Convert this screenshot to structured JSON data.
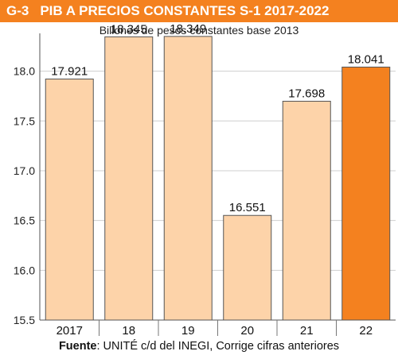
{
  "header": {
    "figure_number": "G-3",
    "title": "PIB A PRECIOS CONSTANTES S-1 2017-2022"
  },
  "colors": {
    "accent": "#f4811f",
    "bar_light": "#fdd3a9",
    "bar_highlight": "#f4811f",
    "gridline": "#cfcfcf"
  },
  "chart_data": {
    "type": "bar",
    "title": "PIB A PRECIOS CONSTANTES S-1 2017-2022",
    "subtitle": "Billones de pesos constantes base 2013",
    "categories": [
      "2017",
      "18",
      "19",
      "20",
      "21",
      "22"
    ],
    "values": [
      17.921,
      18.345,
      18.349,
      16.551,
      17.698,
      18.041
    ],
    "data_labels": [
      "17.921",
      "18.345",
      "18.349",
      "16.551",
      "17.698",
      "18.041"
    ],
    "highlight_index": 5,
    "ylim": [
      15.5,
      18.3
    ],
    "yticks": [
      15.5,
      16.0,
      16.5,
      17.0,
      17.5,
      18.0
    ],
    "ytick_labels": [
      "15.5",
      "16.0",
      "16.5",
      "17.0",
      "17.5",
      "18.0"
    ],
    "xlabel": "",
    "ylabel": "",
    "grid": true
  },
  "source": {
    "label": "Fuente",
    "text": ": UNITÉ c/d del INEGI, Corrige cifras anteriores"
  }
}
